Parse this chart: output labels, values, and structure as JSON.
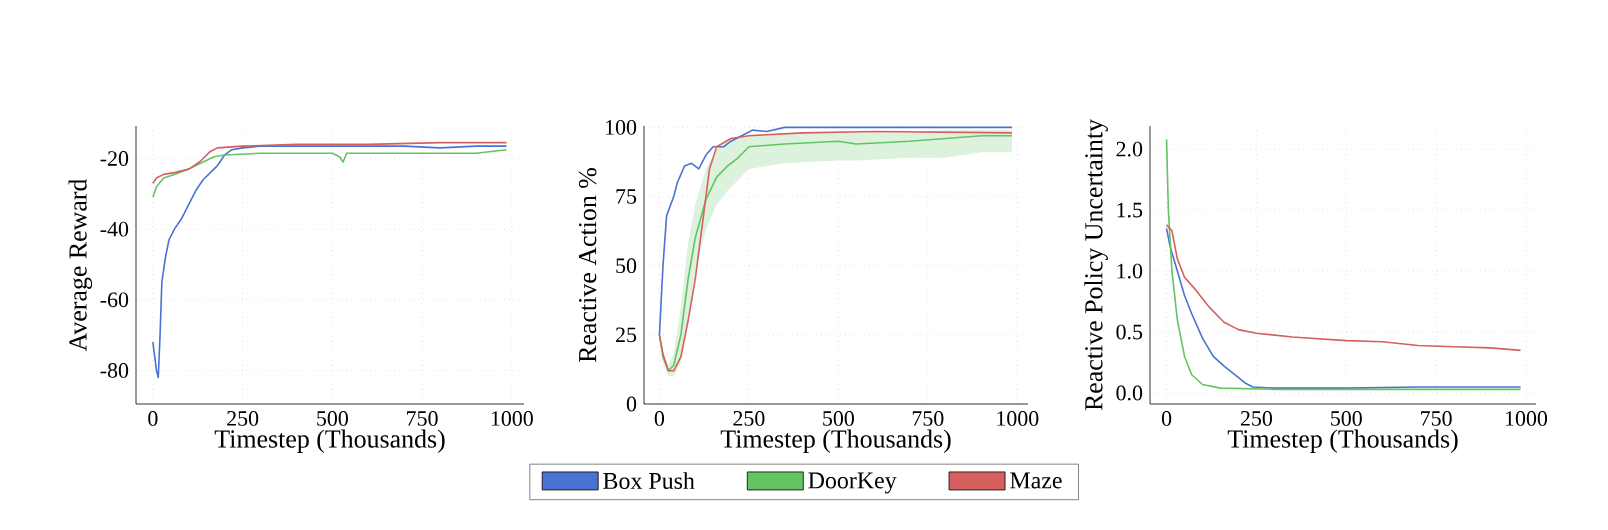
{
  "chart_data": [
    {
      "type": "line",
      "xlabel": "Timestep (Thousands)",
      "ylabel": "Average Reward",
      "xlim": [
        -47,
        1034
      ],
      "ylim": [
        -89.5,
        -10.8
      ],
      "xticks": [
        0,
        250,
        500,
        750,
        1000
      ],
      "yticks": [
        -80,
        -60,
        -40,
        -20
      ],
      "grid": true,
      "legend": false,
      "series": [
        {
          "color": "#4a72d1",
          "x": [
            0,
            5,
            10,
            15,
            20,
            25,
            35,
            45,
            60,
            80,
            100,
            120,
            140,
            160,
            180,
            200,
            220,
            250,
            300,
            400,
            500,
            600,
            700,
            800,
            900,
            985
          ],
          "values": [
            -72,
            -76,
            -80,
            -82,
            -70,
            -55,
            -48,
            -43,
            -40,
            -37,
            -33,
            -29,
            -26,
            -24,
            -22,
            -19,
            -17.5,
            -17,
            -16.5,
            -16.5,
            -16.5,
            -16.5,
            -16.5,
            -17,
            -16.5,
            -16.5
          ]
        },
        {
          "color": "#62c462",
          "x": [
            0,
            10,
            30,
            60,
            100,
            140,
            170,
            200,
            300,
            400,
            500,
            520,
            530,
            540,
            700,
            800,
            900,
            985
          ],
          "values": [
            -31,
            -28,
            -25.5,
            -24.5,
            -23,
            -21,
            -19.5,
            -19,
            -18.5,
            -18.5,
            -18.5,
            -19.5,
            -21,
            -18.5,
            -18.5,
            -18.5,
            -18.5,
            -17.5
          ]
        },
        {
          "color": "#d65f5f",
          "x": [
            0,
            10,
            30,
            60,
            100,
            130,
            160,
            180,
            250,
            400,
            600,
            800,
            985
          ],
          "values": [
            -27,
            -25.5,
            -24.5,
            -24,
            -23,
            -21,
            -18,
            -17,
            -16.5,
            -16,
            -16,
            -15.5,
            -15.5
          ]
        }
      ]
    },
    {
      "type": "line",
      "xlabel": "Timestep (Thousands)",
      "ylabel": "Reactive Action %",
      "xlim": [
        -43,
        1030
      ],
      "ylim": [
        0,
        100.5
      ],
      "xticks": [
        0,
        250,
        500,
        750,
        1000
      ],
      "yticks": [
        0,
        25,
        50,
        75,
        100
      ],
      "grid": true,
      "legend": "bottom",
      "series": [
        {
          "name": "Box Push",
          "color": "#4a72d1",
          "x": [
            0,
            10,
            20,
            40,
            50,
            70,
            90,
            110,
            130,
            150,
            180,
            200,
            230,
            260,
            300,
            350,
            500,
            985
          ],
          "values": [
            25,
            50,
            68,
            75,
            80,
            86,
            87,
            85,
            90,
            93,
            93,
            95,
            97,
            99,
            98.5,
            100,
            100,
            100
          ]
        },
        {
          "name": "DoorKey",
          "color": "#62c462",
          "x": [
            0,
            10,
            25,
            40,
            60,
            80,
            100,
            130,
            160,
            190,
            220,
            250,
            350,
            500,
            550,
            700,
            800,
            900,
            985
          ],
          "values": [
            25,
            17,
            12,
            14,
            25,
            45,
            60,
            74,
            82,
            86,
            89,
            93,
            94,
            95,
            94,
            95,
            96,
            97,
            97
          ],
          "lower": [
            25,
            15,
            10,
            10,
            15,
            30,
            48,
            63,
            72,
            77,
            81,
            85,
            87,
            88,
            88,
            89,
            89,
            91,
            91
          ],
          "upper": [
            25,
            19,
            14,
            18,
            35,
            58,
            72,
            85,
            92,
            95,
            96,
            97,
            98,
            98,
            98,
            98,
            99,
            99,
            99
          ]
        },
        {
          "name": "Maze",
          "color": "#d65f5f",
          "x": [
            0,
            10,
            25,
            40,
            60,
            80,
            100,
            120,
            140,
            160,
            200,
            250,
            400,
            600,
            985
          ],
          "values": [
            25,
            18,
            12,
            12,
            17,
            30,
            45,
            65,
            85,
            93,
            96,
            97,
            98,
            98.5,
            98
          ]
        }
      ]
    },
    {
      "type": "line",
      "xlabel": "Timestep (Thousands)",
      "ylabel": "Reactive Policy Uncertainty",
      "xlim": [
        -46,
        1028
      ],
      "ylim": [
        -0.09,
        2.19
      ],
      "xticks": [
        0,
        250,
        500,
        750,
        1000
      ],
      "yticks": [
        {
          "value": 0,
          "label": "0.0"
        },
        {
          "value": 0.5,
          "label": "0.5"
        },
        {
          "value": 1,
          "label": "1.0"
        },
        {
          "value": 1.5,
          "label": "1.5"
        },
        {
          "value": 2,
          "label": "2.0"
        }
      ],
      "grid": true,
      "legend": false,
      "series": [
        {
          "color": "#4a72d1",
          "x": [
            0,
            10,
            30,
            50,
            70,
            100,
            130,
            160,
            190,
            220,
            240,
            300,
            500,
            700,
            850,
            985
          ],
          "values": [
            1.35,
            1.2,
            1.0,
            0.8,
            0.65,
            0.45,
            0.3,
            0.22,
            0.15,
            0.08,
            0.05,
            0.04,
            0.04,
            0.05,
            0.05,
            0.05
          ]
        },
        {
          "color": "#62c462",
          "x": [
            0,
            5,
            15,
            30,
            50,
            70,
            100,
            150,
            300,
            985
          ],
          "values": [
            2.08,
            1.5,
            1.0,
            0.6,
            0.3,
            0.15,
            0.07,
            0.04,
            0.03,
            0.03
          ]
        },
        {
          "color": "#d65f5f",
          "x": [
            0,
            15,
            30,
            50,
            80,
            120,
            160,
            200,
            250,
            350,
            500,
            600,
            700,
            800,
            900,
            985
          ],
          "values": [
            1.38,
            1.33,
            1.1,
            0.95,
            0.85,
            0.7,
            0.58,
            0.52,
            0.49,
            0.46,
            0.43,
            0.42,
            0.39,
            0.38,
            0.37,
            0.35
          ]
        }
      ]
    }
  ]
}
